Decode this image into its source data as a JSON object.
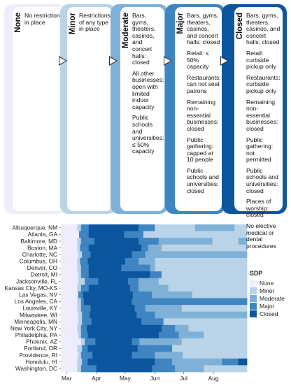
{
  "levels": [
    {
      "name": "None",
      "color": "#ededfb",
      "items": [
        "No restrictions in place"
      ]
    },
    {
      "name": "Minor",
      "color": "#b9d3e8",
      "items": [
        "Restrictions of any type in place"
      ]
    },
    {
      "name": "Moderate",
      "color": "#7fb1d8",
      "items": [
        "Bars, gyms, theaters, casinos, and concert halls: closed",
        "All other businesses: open with limited indoor capacity",
        "Public schools and universities: ≤ 50% capacity"
      ]
    },
    {
      "name": "Major",
      "color": "#3f85c1",
      "items": [
        "Bars, gyms, theaters, casinos, and concert halls: closed",
        "Retail: ≤ 50% capacity",
        "Restaurants: can not seat patrons",
        "Remaining non-essential businesses: closed",
        "Public gathering: capped at 10 people",
        "Public schools and universities: closed"
      ]
    },
    {
      "name": "Closed",
      "color": "#0c56a0",
      "items": [
        "Bars, gyms, theaters, casinos, and concert halls: closed",
        "Retail: curbside pickup only",
        "Restaurants: curbside pickup only",
        "Remaining non-essential businesses: closed",
        "Public gathering: not permitted",
        "Public schools and universities: closed",
        "Places of worship: closed",
        "No elective medical or dental procedures"
      ]
    }
  ],
  "chart_data": {
    "type": "heatmap",
    "x_axis": {
      "type": "date",
      "range": [
        "2020-02-24",
        "2020-09-05"
      ],
      "tick_labels": [
        "Mar",
        "Apr",
        "May",
        "Jun",
        "Jul",
        "Aug"
      ],
      "tick_dates": [
        "2020-03-01",
        "2020-04-01",
        "2020-05-01",
        "2020-06-01",
        "2020-07-01",
        "2020-08-01"
      ]
    },
    "legend": {
      "title": "SDP",
      "position": "right",
      "entries": [
        "None",
        "Minor",
        "Moderate",
        "Major",
        "Closed"
      ]
    },
    "colors": {
      "None": "#ededfb",
      "Minor": "#b9d3e8",
      "Moderate": "#7fb1d8",
      "Major": "#3f85c1",
      "Closed": "#0c56a0"
    },
    "cities": [
      {
        "name": "Albuquerque, NM",
        "segments": [
          [
            "2020-02-24",
            "2020-03-12",
            "None"
          ],
          [
            "2020-03-12",
            "2020-03-16",
            "Minor"
          ],
          [
            "2020-03-16",
            "2020-03-24",
            "Major"
          ],
          [
            "2020-03-24",
            "2020-05-15",
            "Closed"
          ],
          [
            "2020-05-15",
            "2020-06-01",
            "Major"
          ],
          [
            "2020-06-01",
            "2020-07-13",
            "Minor"
          ],
          [
            "2020-07-13",
            "2020-08-23",
            "Moderate"
          ],
          [
            "2020-08-23",
            "2020-09-05",
            "Minor"
          ]
        ]
      },
      {
        "name": "Atlanta, GA",
        "segments": [
          [
            "2020-02-24",
            "2020-03-14",
            "None"
          ],
          [
            "2020-03-14",
            "2020-03-24",
            "Major"
          ],
          [
            "2020-03-24",
            "2020-04-30",
            "Closed"
          ],
          [
            "2020-04-30",
            "2020-05-20",
            "Major"
          ],
          [
            "2020-05-20",
            "2020-09-05",
            "Minor"
          ]
        ]
      },
      {
        "name": "Baltimore, MD",
        "segments": [
          [
            "2020-02-24",
            "2020-03-12",
            "None"
          ],
          [
            "2020-03-12",
            "2020-03-16",
            "Minor"
          ],
          [
            "2020-03-16",
            "2020-03-30",
            "Major"
          ],
          [
            "2020-03-30",
            "2020-05-15",
            "Closed"
          ],
          [
            "2020-05-15",
            "2020-06-05",
            "Major"
          ],
          [
            "2020-06-05",
            "2020-07-31",
            "Moderate"
          ],
          [
            "2020-07-31",
            "2020-08-27",
            "Minor"
          ],
          [
            "2020-08-27",
            "2020-09-05",
            "Moderate"
          ]
        ]
      },
      {
        "name": "Boston, MA",
        "segments": [
          [
            "2020-02-24",
            "2020-03-12",
            "None"
          ],
          [
            "2020-03-12",
            "2020-03-15",
            "Minor"
          ],
          [
            "2020-03-15",
            "2020-03-24",
            "Major"
          ],
          [
            "2020-03-24",
            "2020-05-18",
            "Closed"
          ],
          [
            "2020-05-18",
            "2020-05-25",
            "Major"
          ],
          [
            "2020-05-25",
            "2020-06-08",
            "Moderate"
          ],
          [
            "2020-06-08",
            "2020-09-05",
            "Minor"
          ]
        ]
      },
      {
        "name": "Charlotte, NC",
        "segments": [
          [
            "2020-02-24",
            "2020-03-13",
            "None"
          ],
          [
            "2020-03-13",
            "2020-03-17",
            "Minor"
          ],
          [
            "2020-03-17",
            "2020-03-26",
            "Major"
          ],
          [
            "2020-03-26",
            "2020-05-08",
            "Closed"
          ],
          [
            "2020-05-08",
            "2020-05-22",
            "Major"
          ],
          [
            "2020-05-22",
            "2020-09-05",
            "Moderate"
          ]
        ]
      },
      {
        "name": "Columbus, OH",
        "segments": [
          [
            "2020-02-24",
            "2020-03-12",
            "None"
          ],
          [
            "2020-03-12",
            "2020-03-15",
            "Minor"
          ],
          [
            "2020-03-15",
            "2020-03-23",
            "Major"
          ],
          [
            "2020-03-23",
            "2020-05-01",
            "Closed"
          ],
          [
            "2020-05-01",
            "2020-05-15",
            "Major"
          ],
          [
            "2020-05-15",
            "2020-06-01",
            "Moderate"
          ],
          [
            "2020-06-01",
            "2020-09-05",
            "Minor"
          ]
        ]
      },
      {
        "name": "Denver, CO",
        "segments": [
          [
            "2020-02-24",
            "2020-03-12",
            "None"
          ],
          [
            "2020-03-12",
            "2020-03-16",
            "Minor"
          ],
          [
            "2020-03-16",
            "2020-03-24",
            "Major"
          ],
          [
            "2020-03-24",
            "2020-04-27",
            "Closed"
          ],
          [
            "2020-04-27",
            "2020-05-27",
            "Major"
          ],
          [
            "2020-05-27",
            "2020-06-01",
            "Moderate"
          ],
          [
            "2020-06-01",
            "2020-09-05",
            "Minor"
          ]
        ]
      },
      {
        "name": "Detroit, MI",
        "segments": [
          [
            "2020-02-24",
            "2020-03-13",
            "None"
          ],
          [
            "2020-03-13",
            "2020-03-16",
            "Minor"
          ],
          [
            "2020-03-16",
            "2020-03-24",
            "Major"
          ],
          [
            "2020-03-24",
            "2020-05-27",
            "Closed"
          ],
          [
            "2020-05-27",
            "2020-06-08",
            "Major"
          ],
          [
            "2020-06-08",
            "2020-09-05",
            "Minor"
          ]
        ]
      },
      {
        "name": "Jacksonville, FL",
        "segments": [
          [
            "2020-02-24",
            "2020-03-13",
            "None"
          ],
          [
            "2020-03-13",
            "2020-03-20",
            "Minor"
          ],
          [
            "2020-03-20",
            "2020-04-03",
            "Major"
          ],
          [
            "2020-04-03",
            "2020-05-04",
            "Closed"
          ],
          [
            "2020-05-04",
            "2020-05-15",
            "Major"
          ],
          [
            "2020-05-15",
            "2020-06-05",
            "Moderate"
          ],
          [
            "2020-06-05",
            "2020-09-05",
            "Minor"
          ]
        ]
      },
      {
        "name": "Kansas City, MO-KS",
        "segments": [
          [
            "2020-02-24",
            "2020-03-12",
            "None"
          ],
          [
            "2020-03-12",
            "2020-03-16",
            "Minor"
          ],
          [
            "2020-03-16",
            "2020-03-24",
            "Major"
          ],
          [
            "2020-03-24",
            "2020-05-06",
            "Closed"
          ],
          [
            "2020-05-06",
            "2020-05-15",
            "Major"
          ],
          [
            "2020-05-15",
            "2020-06-15",
            "Moderate"
          ],
          [
            "2020-06-15",
            "2020-09-05",
            "Minor"
          ]
        ]
      },
      {
        "name": "Las Vegas, NV",
        "segments": [
          [
            "2020-02-24",
            "2020-03-13",
            "None"
          ],
          [
            "2020-03-13",
            "2020-03-18",
            "Major"
          ],
          [
            "2020-03-18",
            "2020-05-09",
            "Closed"
          ],
          [
            "2020-05-09",
            "2020-05-29",
            "Major"
          ],
          [
            "2020-05-29",
            "2020-07-10",
            "Moderate"
          ],
          [
            "2020-07-10",
            "2020-09-05",
            "Minor"
          ]
        ]
      },
      {
        "name": "Los Angeles, CA",
        "segments": [
          [
            "2020-02-24",
            "2020-03-12",
            "None"
          ],
          [
            "2020-03-12",
            "2020-03-16",
            "Minor"
          ],
          [
            "2020-03-16",
            "2020-03-19",
            "Major"
          ],
          [
            "2020-03-19",
            "2020-05-08",
            "Closed"
          ],
          [
            "2020-05-08",
            "2020-09-05",
            "Major"
          ]
        ]
      },
      {
        "name": "Louisville, KY",
        "segments": [
          [
            "2020-02-24",
            "2020-03-12",
            "None"
          ],
          [
            "2020-03-12",
            "2020-03-16",
            "Minor"
          ],
          [
            "2020-03-16",
            "2020-03-26",
            "Major"
          ],
          [
            "2020-03-26",
            "2020-05-11",
            "Closed"
          ],
          [
            "2020-05-11",
            "2020-05-22",
            "Major"
          ],
          [
            "2020-05-22",
            "2020-06-29",
            "Moderate"
          ],
          [
            "2020-06-29",
            "2020-09-05",
            "Minor"
          ]
        ]
      },
      {
        "name": "Milwaukee, WI",
        "segments": [
          [
            "2020-02-24",
            "2020-03-13",
            "None"
          ],
          [
            "2020-03-13",
            "2020-03-17",
            "Minor"
          ],
          [
            "2020-03-17",
            "2020-03-25",
            "Major"
          ],
          [
            "2020-03-25",
            "2020-05-13",
            "Closed"
          ],
          [
            "2020-05-13",
            "2020-06-01",
            "Major"
          ],
          [
            "2020-06-01",
            "2020-09-05",
            "Moderate"
          ]
        ]
      },
      {
        "name": "Minneapolis, MN",
        "segments": [
          [
            "2020-02-24",
            "2020-03-13",
            "None"
          ],
          [
            "2020-03-13",
            "2020-03-17",
            "Minor"
          ],
          [
            "2020-03-17",
            "2020-03-27",
            "Major"
          ],
          [
            "2020-03-27",
            "2020-05-18",
            "Closed"
          ],
          [
            "2020-05-18",
            "2020-06-10",
            "Major"
          ],
          [
            "2020-06-10",
            "2020-09-05",
            "Minor"
          ]
        ]
      },
      {
        "name": "New York City, NY",
        "segments": [
          [
            "2020-02-24",
            "2020-03-12",
            "None"
          ],
          [
            "2020-03-12",
            "2020-03-16",
            "Minor"
          ],
          [
            "2020-03-16",
            "2020-03-22",
            "Major"
          ],
          [
            "2020-03-22",
            "2020-06-08",
            "Closed"
          ],
          [
            "2020-06-08",
            "2020-06-22",
            "Major"
          ],
          [
            "2020-06-22",
            "2020-07-06",
            "Moderate"
          ],
          [
            "2020-07-06",
            "2020-09-05",
            "Minor"
          ]
        ]
      },
      {
        "name": "Philadelphia, PA",
        "segments": [
          [
            "2020-02-24",
            "2020-03-13",
            "None"
          ],
          [
            "2020-03-13",
            "2020-03-16",
            "Minor"
          ],
          [
            "2020-03-16",
            "2020-03-23",
            "Major"
          ],
          [
            "2020-03-23",
            "2020-06-05",
            "Closed"
          ],
          [
            "2020-06-05",
            "2020-06-26",
            "Major"
          ],
          [
            "2020-06-26",
            "2020-07-22",
            "Moderate"
          ],
          [
            "2020-07-22",
            "2020-09-05",
            "Minor"
          ]
        ]
      },
      {
        "name": "Phoenix, AZ",
        "segments": [
          [
            "2020-02-24",
            "2020-03-16",
            "None"
          ],
          [
            "2020-03-16",
            "2020-03-20",
            "Minor"
          ],
          [
            "2020-03-20",
            "2020-03-31",
            "Major"
          ],
          [
            "2020-03-31",
            "2020-05-08",
            "Closed"
          ],
          [
            "2020-05-08",
            "2020-05-16",
            "Major"
          ],
          [
            "2020-05-16",
            "2020-06-29",
            "Moderate"
          ],
          [
            "2020-06-29",
            "2020-09-05",
            "Minor"
          ]
        ]
      },
      {
        "name": "Portland, OR",
        "segments": [
          [
            "2020-02-24",
            "2020-03-12",
            "None"
          ],
          [
            "2020-03-12",
            "2020-03-17",
            "Minor"
          ],
          [
            "2020-03-17",
            "2020-03-23",
            "Major"
          ],
          [
            "2020-03-23",
            "2020-05-14",
            "Closed"
          ],
          [
            "2020-05-14",
            "2020-06-19",
            "Major"
          ],
          [
            "2020-06-19",
            "2020-09-05",
            "Minor"
          ]
        ]
      },
      {
        "name": "Providence, RI",
        "segments": [
          [
            "2020-02-24",
            "2020-03-13",
            "None"
          ],
          [
            "2020-03-13",
            "2020-03-16",
            "Minor"
          ],
          [
            "2020-03-16",
            "2020-03-28",
            "Major"
          ],
          [
            "2020-03-28",
            "2020-05-08",
            "Closed"
          ],
          [
            "2020-05-08",
            "2020-06-01",
            "Major"
          ],
          [
            "2020-06-01",
            "2020-06-30",
            "Moderate"
          ],
          [
            "2020-06-30",
            "2020-09-05",
            "Minor"
          ]
        ]
      },
      {
        "name": "Honolulu, HI",
        "segments": [
          [
            "2020-02-24",
            "2020-03-12",
            "None"
          ],
          [
            "2020-03-12",
            "2020-03-17",
            "Minor"
          ],
          [
            "2020-03-17",
            "2020-03-23",
            "Major"
          ],
          [
            "2020-03-23",
            "2020-06-01",
            "Closed"
          ],
          [
            "2020-06-01",
            "2020-06-19",
            "Major"
          ],
          [
            "2020-06-19",
            "2020-08-10",
            "Moderate"
          ],
          [
            "2020-08-10",
            "2020-08-27",
            "Major"
          ],
          [
            "2020-08-27",
            "2020-09-05",
            "Closed"
          ]
        ]
      },
      {
        "name": "Washington, DC",
        "segments": [
          [
            "2020-02-24",
            "2020-03-12",
            "None"
          ],
          [
            "2020-03-12",
            "2020-03-16",
            "Minor"
          ],
          [
            "2020-03-16",
            "2020-04-01",
            "Major"
          ],
          [
            "2020-04-01",
            "2020-05-29",
            "Closed"
          ],
          [
            "2020-05-29",
            "2020-06-22",
            "Major"
          ],
          [
            "2020-06-22",
            "2020-07-22",
            "Moderate"
          ],
          [
            "2020-07-22",
            "2020-09-05",
            "Minor"
          ]
        ]
      }
    ]
  }
}
